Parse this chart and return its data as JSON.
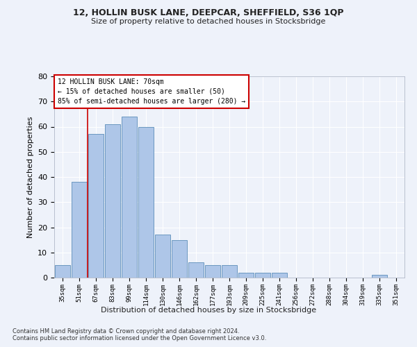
{
  "title1": "12, HOLLIN BUSK LANE, DEEPCAR, SHEFFIELD, S36 1QP",
  "title2": "Size of property relative to detached houses in Stocksbridge",
  "xlabel": "Distribution of detached houses by size in Stocksbridge",
  "ylabel": "Number of detached properties",
  "categories": [
    "35sqm",
    "51sqm",
    "67sqm",
    "83sqm",
    "99sqm",
    "114sqm",
    "130sqm",
    "146sqm",
    "162sqm",
    "177sqm",
    "193sqm",
    "209sqm",
    "225sqm",
    "241sqm",
    "256sqm",
    "272sqm",
    "288sqm",
    "304sqm",
    "319sqm",
    "335sqm",
    "351sqm"
  ],
  "bar_values": [
    5,
    38,
    57,
    61,
    64,
    60,
    17,
    15,
    6,
    5,
    5,
    2,
    2,
    2,
    0,
    0,
    0,
    0,
    0,
    1,
    0
  ],
  "bar_color": "#aec6e8",
  "bar_edge_color": "#5b8db8",
  "vline_x": 1.5,
  "vline_color": "#cc0000",
  "ylim": [
    0,
    80
  ],
  "yticks": [
    0,
    10,
    20,
    30,
    40,
    50,
    60,
    70,
    80
  ],
  "annotation_line1": "12 HOLLIN BUSK LANE: 70sqm",
  "annotation_line2": "← 15% of detached houses are smaller (50)",
  "annotation_line3": "85% of semi-detached houses are larger (280) →",
  "annotation_box_color": "#ffffff",
  "annotation_box_edge": "#cc0000",
  "footnote1": "Contains HM Land Registry data © Crown copyright and database right 2024.",
  "footnote2": "Contains public sector information licensed under the Open Government Licence v3.0.",
  "bg_color": "#eef2fa",
  "grid_color": "#ffffff"
}
